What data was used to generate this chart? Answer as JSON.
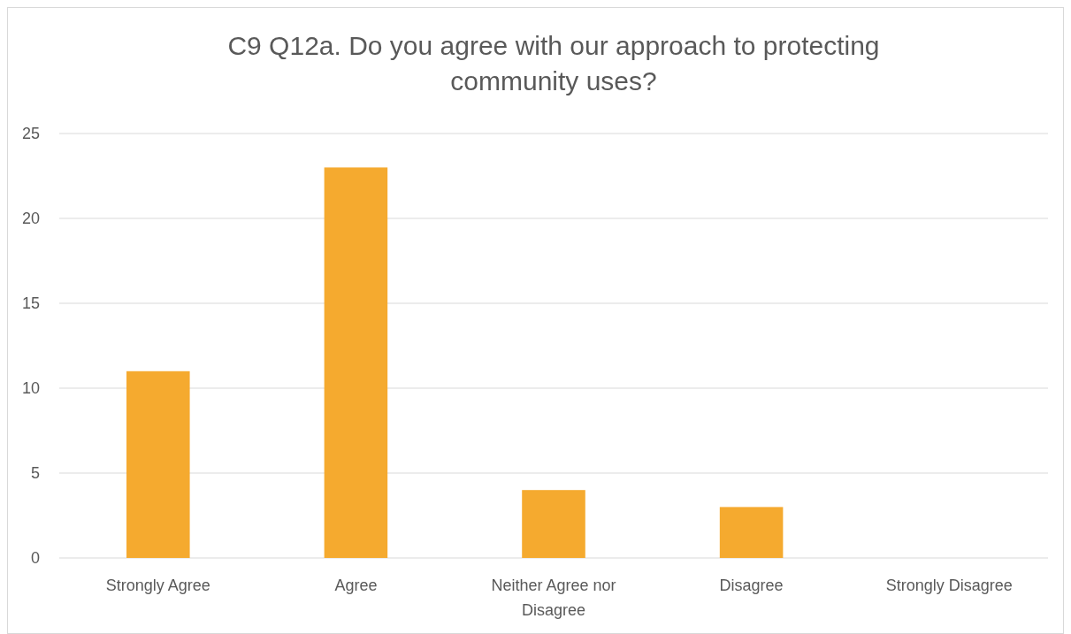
{
  "chart_data": {
    "type": "bar",
    "title": "C9 Q12a. Do you agree with our approach to protecting community uses?",
    "categories": [
      "Strongly Agree",
      "Agree",
      "Neither Agree nor Disagree",
      "Disagree",
      "Strongly Disagree"
    ],
    "values": [
      11,
      23,
      4,
      3,
      0
    ],
    "color": "#f5aa2f",
    "ylim": [
      0,
      25
    ],
    "yticks": [
      0,
      5,
      10,
      15,
      20,
      25
    ],
    "grid": "y"
  }
}
